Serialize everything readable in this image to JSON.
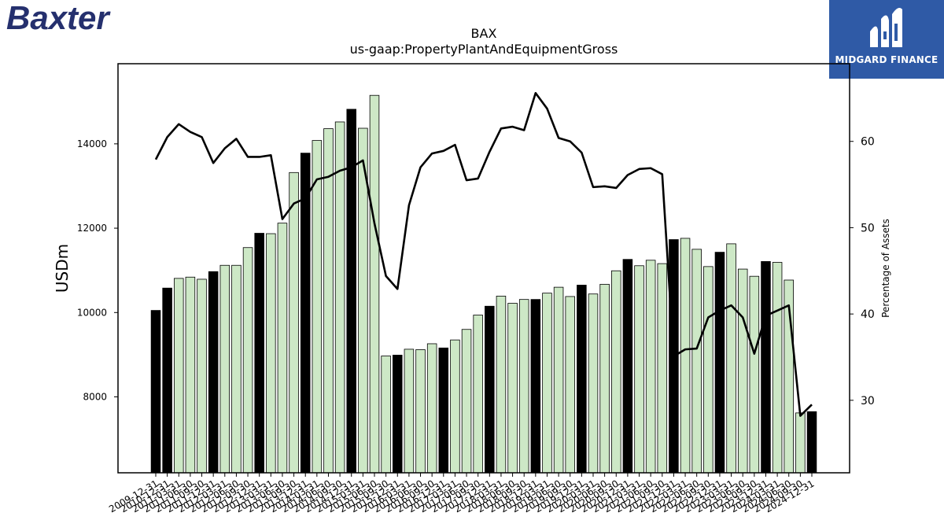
{
  "brand": {
    "company_logo_text": "Baxter",
    "company_logo_color": "#25306e",
    "publisher_name": "MIDGARD FINANCE",
    "publisher_bg_color": "#2f5aa6"
  },
  "chart_data": {
    "type": "bar",
    "title": "BAX",
    "subtitle": "us-gaap:PropertyPlantAndEquipmentGross",
    "ylabel": "USDm",
    "y2label": "Percentage of Assets",
    "ylim": [
      6200,
      15900
    ],
    "y2lim": [
      21.6,
      69.0
    ],
    "yticks": [
      8000,
      10000,
      12000,
      14000
    ],
    "y2ticks": [
      30,
      40,
      50,
      60
    ],
    "colors": {
      "annual_bar": "#000000",
      "quarter_bar": "#cde8c6",
      "bar_edge": "#000000",
      "line": "#000000"
    },
    "categories": [
      "2009-12-31",
      "2010-12-31",
      "2011-03-31",
      "2011-06-30",
      "2011-09-30",
      "2011-12-31",
      "2012-03-31",
      "2012-06-30",
      "2012-09-30",
      "2012-12-31",
      "2013-03-31",
      "2013-06-30",
      "2013-09-30",
      "2013-12-31",
      "2014-03-31",
      "2014-06-30",
      "2014-09-30",
      "2014-12-31",
      "2015-03-31",
      "2015-06-30",
      "2015-09-30",
      "2015-12-31",
      "2016-03-31",
      "2016-06-30",
      "2016-09-30",
      "2016-12-31",
      "2017-03-31",
      "2017-06-30",
      "2017-09-30",
      "2017-12-31",
      "2018-03-31",
      "2018-06-30",
      "2018-09-30",
      "2018-12-31",
      "2019-03-31",
      "2019-06-30",
      "2019-09-30",
      "2019-12-31",
      "2020-03-31",
      "2020-06-30",
      "2020-09-30",
      "2020-12-31",
      "2021-03-31",
      "2021-06-30",
      "2021-09-30",
      "2021-12-31",
      "2022-03-31",
      "2022-06-30",
      "2022-09-30",
      "2022-12-31",
      "2023-03-31",
      "2023-06-30",
      "2023-09-30",
      "2023-12-31",
      "2024-03-31",
      "2024-06-30",
      "2024-09-30",
      "2024-12-31"
    ],
    "series": [
      {
        "name": "PropertyPlantAndEquipmentGross",
        "axis": "left",
        "values": [
          10050,
          10580,
          10810,
          10840,
          10790,
          10970,
          11120,
          11120,
          11540,
          11880,
          11870,
          12120,
          13320,
          13780,
          14080,
          14360,
          14520,
          14820,
          14370,
          15150,
          8970,
          8990,
          9130,
          9120,
          9260,
          9160,
          9350,
          9600,
          9940,
          10150,
          10390,
          10220,
          10310,
          10310,
          10460,
          10600,
          10380,
          10650,
          10440,
          10670,
          10990,
          11260,
          11110,
          11240,
          11160,
          11730,
          11760,
          11500,
          11090,
          11430,
          11630,
          11030,
          10860,
          11210,
          11190,
          10770,
          7620,
          7650
        ],
        "is_annual": [
          true,
          true,
          false,
          false,
          false,
          true,
          false,
          false,
          false,
          true,
          false,
          false,
          false,
          true,
          false,
          false,
          false,
          true,
          false,
          false,
          false,
          true,
          false,
          false,
          false,
          true,
          false,
          false,
          false,
          true,
          false,
          false,
          false,
          true,
          false,
          false,
          false,
          true,
          false,
          false,
          false,
          true,
          false,
          false,
          false,
          true,
          false,
          false,
          false,
          true,
          false,
          false,
          false,
          true,
          false,
          false,
          false,
          true
        ]
      },
      {
        "name": "Percentage of Assets",
        "axis": "right",
        "type": "line",
        "values": [
          57.9,
          60.5,
          62.0,
          61.1,
          60.5,
          57.5,
          59.2,
          60.3,
          58.2,
          58.2,
          58.4,
          51.0,
          52.8,
          53.4,
          55.6,
          55.9,
          56.6,
          57.0,
          57.8,
          50.5,
          44.4,
          42.9,
          52.6,
          57.0,
          58.6,
          58.9,
          59.6,
          55.5,
          55.7,
          58.8,
          61.5,
          61.7,
          61.3,
          65.6,
          63.8,
          60.4,
          60.0,
          58.7,
          54.7,
          54.8,
          54.6,
          56.1,
          56.8,
          56.9,
          56.2,
          35.1,
          35.9,
          36.0,
          39.6,
          40.4,
          41.0,
          39.6,
          35.4,
          39.8,
          40.4,
          41.0,
          28.2,
          29.5
        ]
      }
    ]
  }
}
